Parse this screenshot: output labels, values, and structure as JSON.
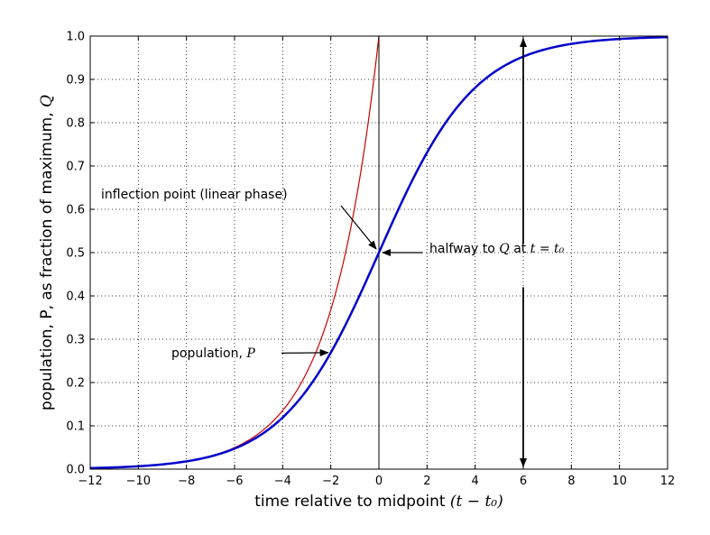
{
  "chart_data": {
    "type": "line",
    "xlabel_text": "time relative to midpoint ",
    "xlabel_math": "(t − t₀)",
    "ylabel_text": "population, P, as fraction of maximum, ",
    "ylabel_math": "Q",
    "xlim": [
      -12,
      12
    ],
    "ylim": [
      0,
      1
    ],
    "grid": true,
    "grid_style": "dotted",
    "x_ticks": [
      -12,
      -10,
      -8,
      -6,
      -4,
      -2,
      0,
      2,
      4,
      6,
      8,
      10,
      12
    ],
    "x_tick_labels": [
      "−12",
      "−10",
      "−8",
      "−6",
      "−4",
      "−2",
      "0",
      "2",
      "4",
      "6",
      "8",
      "10",
      "12"
    ],
    "y_ticks": [
      0.0,
      0.1,
      0.2,
      0.3,
      0.4,
      0.5,
      0.6,
      0.7,
      0.8,
      0.9,
      1.0
    ],
    "y_tick_labels": [
      "0.0",
      "0.1",
      "0.2",
      "0.3",
      "0.4",
      "0.5",
      "0.6",
      "0.7",
      "0.8",
      "0.9",
      "1.0"
    ],
    "series": [
      {
        "kind": "logistic",
        "color": "#0000cc",
        "x": [
          -12,
          -10,
          -8,
          -6,
          -4,
          -3,
          -2,
          -1,
          0,
          1,
          2,
          3,
          4,
          6,
          8,
          10,
          12
        ],
        "y": [
          0.0025,
          0.0067,
          0.018,
          0.047,
          0.119,
          0.182,
          0.269,
          0.378,
          0.5,
          0.622,
          0.731,
          0.818,
          0.881,
          0.953,
          0.982,
          0.993,
          0.9975
        ]
      },
      {
        "kind": "exponential",
        "color": "#cc0000",
        "x": [
          -12,
          -10,
          -8,
          -6,
          -4,
          -3,
          -2,
          -1,
          0
        ],
        "y": [
          0.0025,
          0.0067,
          0.018,
          0.05,
          0.135,
          0.223,
          0.368,
          0.607,
          1.0
        ]
      }
    ],
    "vertical_line_x": 0,
    "double_arrow_x": 6,
    "annotations": [
      {
        "text": "inflection point (linear phase)",
        "point": [
          0,
          0.5
        ]
      },
      {
        "text_prefix": "halfway to ",
        "math": "Q",
        "text_mid": " at ",
        "math2": "t = t₀",
        "point": [
          0,
          0.5
        ]
      },
      {
        "text_prefix": "population, ",
        "math": "P",
        "point": [
          -2,
          0.269
        ]
      }
    ],
    "colors": {
      "logistic": "#0000cc",
      "exponential": "#cc0000",
      "axes": "#000000",
      "grid": "#000000"
    }
  }
}
